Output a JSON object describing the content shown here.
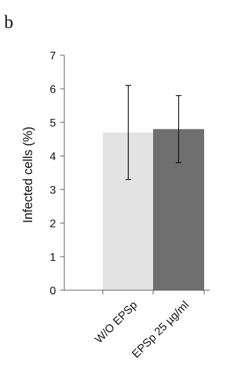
{
  "panel_label": "b",
  "chart_data": {
    "type": "bar",
    "title": "",
    "xlabel": "",
    "ylabel": "Infected cells (%)",
    "ylim": [
      0,
      7
    ],
    "yticks": [
      0,
      1,
      2,
      3,
      4,
      5,
      6,
      7
    ],
    "categories": [
      "W/O EPSp",
      "EPSp 25 µg/ml"
    ],
    "values": [
      4.7,
      4.8
    ],
    "error_low": [
      3.3,
      3.8
    ],
    "error_high": [
      6.1,
      5.8
    ],
    "bar_colors": [
      "#e3e3e3",
      "#6f6f6f"
    ],
    "grid": false,
    "legend": "none"
  }
}
